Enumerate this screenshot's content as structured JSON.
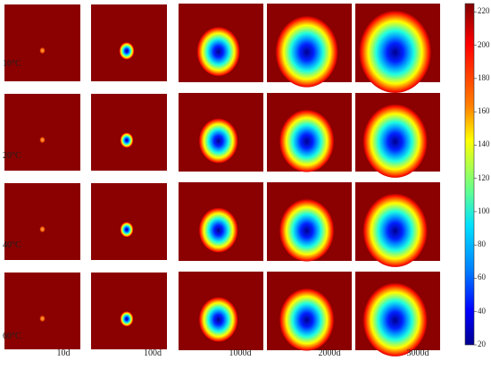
{
  "figure": {
    "row_labels": [
      "10°C",
      "20°C",
      "40°C",
      "60°C"
    ],
    "col_labels": [
      "10d",
      "100d",
      "1000d",
      "2000d",
      "3000d"
    ],
    "colorbar": {
      "min": 20,
      "max": 225,
      "ticks": [
        "220",
        "200",
        "180",
        "160",
        "140",
        "120",
        "100",
        "80",
        "60",
        "40",
        "20"
      ],
      "colormap": "jet"
    },
    "background_color": "#8b0000",
    "plume_sizes": [
      [
        0.03,
        0.08,
        0.22,
        0.32,
        0.37
      ],
      [
        0.03,
        0.07,
        0.2,
        0.28,
        0.33
      ],
      [
        0.03,
        0.07,
        0.2,
        0.28,
        0.33
      ],
      [
        0.03,
        0.07,
        0.2,
        0.28,
        0.33
      ]
    ]
  }
}
